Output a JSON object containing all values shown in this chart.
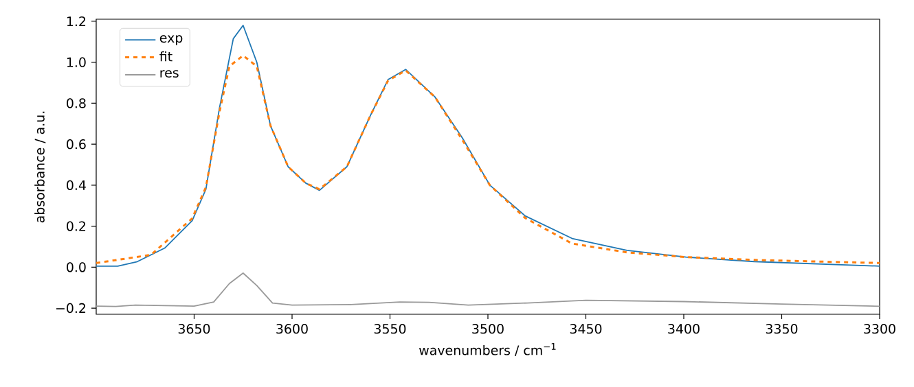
{
  "chart_data": {
    "type": "line",
    "xlabel": "wavenumbers / cm$^{−1}$",
    "ylabel": "absorbance / a.u.",
    "xlim": [
      3700,
      3300
    ],
    "ylim": [
      -0.23,
      1.21
    ],
    "xticks": [
      3650,
      3600,
      3550,
      3500,
      3450,
      3400,
      3350,
      3300
    ],
    "yticks": [
      {
        "value": -0.2,
        "label": "−0.2"
      },
      {
        "value": 0,
        "label": "0.0"
      },
      {
        "value": 0.2,
        "label": "0.2"
      },
      {
        "value": 0.4,
        "label": "0.4"
      },
      {
        "value": 0.6,
        "label": "0.6"
      },
      {
        "value": 0.8,
        "label": "0.8"
      },
      {
        "value": 1.0,
        "label": "1.0"
      },
      {
        "value": 1.2,
        "label": "1.2"
      }
    ],
    "legend": "top left",
    "grid": false,
    "marker": "none",
    "series": [
      {
        "name": "exp",
        "color": "#1f77b4",
        "line_style": "solid",
        "x": [
          3700,
          3689,
          3679,
          3665,
          3651,
          3644,
          3637,
          3630,
          3625,
          3618,
          3611,
          3602,
          3593,
          3586,
          3572,
          3560,
          3551,
          3542,
          3527,
          3513,
          3499,
          3481,
          3457,
          3429,
          3399,
          3364,
          3300
        ],
        "values": [
          0.005,
          0.005,
          0.027,
          0.093,
          0.227,
          0.38,
          0.78,
          1.115,
          1.18,
          1.0,
          0.69,
          0.49,
          0.41,
          0.375,
          0.49,
          0.74,
          0.915,
          0.965,
          0.83,
          0.63,
          0.4,
          0.25,
          0.14,
          0.082,
          0.049,
          0.027,
          0.005
        ]
      },
      {
        "name": "fit",
        "color": "#ff7f0e",
        "line_style": "dashed",
        "x": [
          3700,
          3672,
          3651,
          3644,
          3637,
          3632,
          3625,
          3618,
          3611,
          3602,
          3593,
          3586,
          3572,
          3560,
          3551,
          3542,
          3527,
          3513,
          3499,
          3481,
          3457,
          3429,
          3399,
          3364,
          3300
        ],
        "values": [
          0.02,
          0.06,
          0.238,
          0.39,
          0.76,
          0.98,
          1.033,
          0.98,
          0.69,
          0.49,
          0.41,
          0.38,
          0.49,
          0.74,
          0.91,
          0.96,
          0.83,
          0.62,
          0.4,
          0.24,
          0.115,
          0.072,
          0.049,
          0.035,
          0.02
        ]
      },
      {
        "name": "res",
        "color": "#999999",
        "line_style": "solid",
        "x": [
          3700,
          3690,
          3680,
          3665,
          3650,
          3640,
          3632,
          3625,
          3618,
          3610,
          3600,
          3570,
          3545,
          3530,
          3510,
          3480,
          3450,
          3400,
          3350,
          3300
        ],
        "values": [
          -0.19,
          -0.192,
          -0.185,
          -0.188,
          -0.19,
          -0.17,
          -0.08,
          -0.029,
          -0.09,
          -0.175,
          -0.185,
          -0.183,
          -0.17,
          -0.172,
          -0.185,
          -0.175,
          -0.162,
          -0.168,
          -0.18,
          -0.191
        ]
      }
    ]
  }
}
